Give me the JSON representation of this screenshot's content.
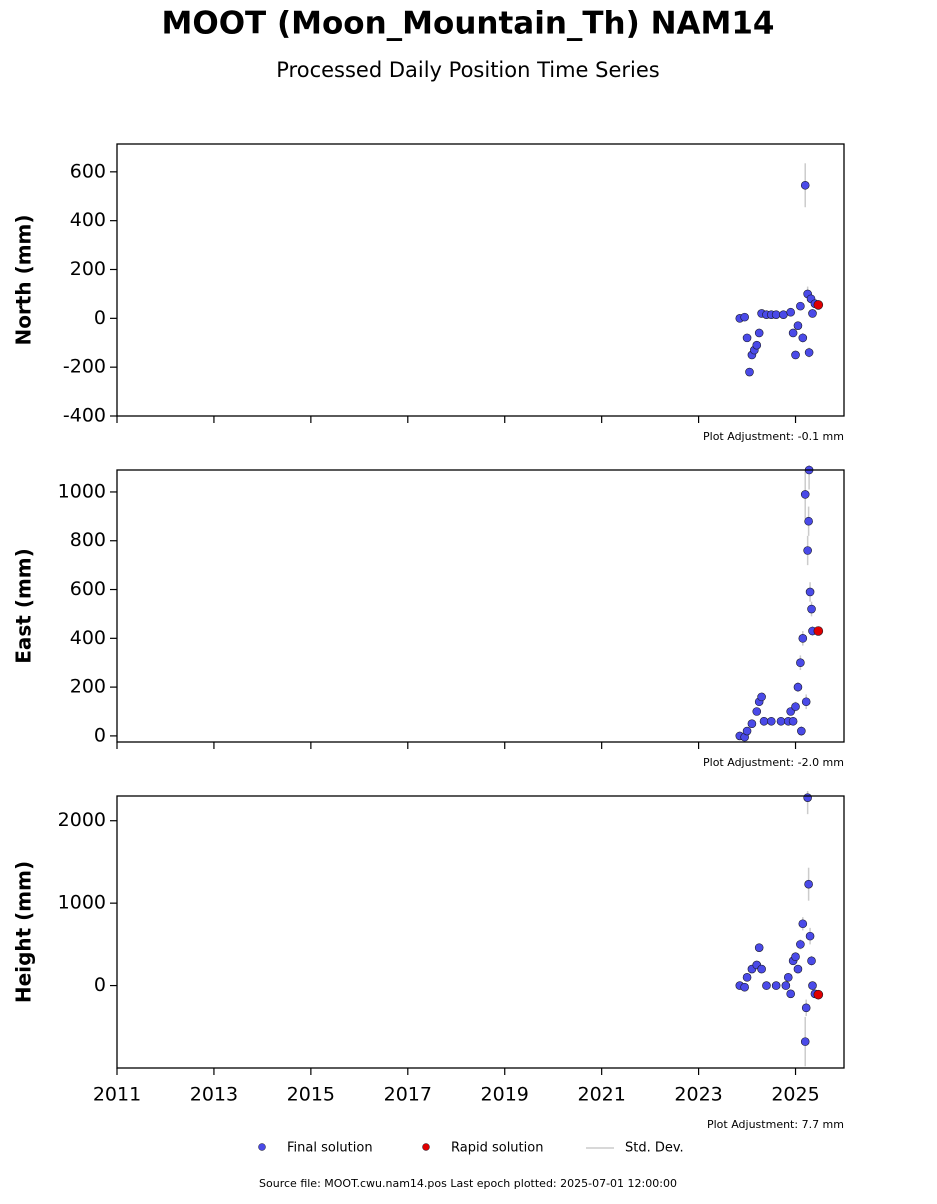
{
  "title": "MOOT (Moon_Mountain_Th) NAM14",
  "subtitle": "Processed Daily Position Time Series",
  "std_dev_label": "Std. Dev.",
  "source": "Source file: MOOT.cwu.nam14.pos  Last epoch plotted: 2025-07-01 12:00:00",
  "chart_data": [
    {
      "type": "scatter",
      "ylabel": "North (mm)",
      "annotation": "Plot Adjustment: -0.1 mm",
      "xlim": [
        2011,
        2026
      ],
      "xticks": [
        2011,
        2013,
        2015,
        2017,
        2019,
        2021,
        2023,
        2025
      ],
      "ylim": [
        -400,
        714
      ],
      "yticks": [
        -400,
        -200,
        0,
        200,
        400,
        600
      ],
      "series": [
        {
          "name": "Final solution",
          "color": "#4a4ae8",
          "x": [
            2023.85,
            2023.95,
            2024.0,
            2024.05,
            2024.1,
            2024.15,
            2024.2,
            2024.25,
            2024.3,
            2024.4,
            2024.5,
            2024.6,
            2024.75,
            2024.9,
            2024.95,
            2025.0,
            2025.05,
            2025.1,
            2025.15,
            2025.2,
            2025.25,
            2025.28,
            2025.32,
            2025.35,
            2025.4
          ],
          "values": [
            0,
            5,
            -80,
            -220,
            -150,
            -130,
            -110,
            -60,
            20,
            15,
            15,
            15,
            15,
            25,
            -60,
            -150,
            -30,
            50,
            -80,
            545,
            100,
            -140,
            80,
            20,
            60
          ],
          "errors": [
            5,
            5,
            10,
            10,
            10,
            10,
            10,
            10,
            5,
            5,
            5,
            5,
            5,
            5,
            10,
            10,
            10,
            10,
            20,
            90,
            30,
            20,
            20,
            10,
            10
          ]
        },
        {
          "name": "Rapid solution",
          "color": "#e00000",
          "x": [
            2025.47
          ],
          "values": [
            55
          ]
        }
      ]
    },
    {
      "type": "scatter",
      "ylabel": "East (mm)",
      "annotation": "Plot Adjustment: -2.0 mm",
      "xlim": [
        2011,
        2026
      ],
      "xticks": [
        2011,
        2013,
        2015,
        2017,
        2019,
        2021,
        2023,
        2025
      ],
      "ylim": [
        -25,
        1090
      ],
      "yticks": [
        0,
        200,
        400,
        600,
        800,
        1000
      ],
      "series": [
        {
          "name": "Final solution",
          "color": "#4a4ae8",
          "x": [
            2023.85,
            2023.95,
            2024.0,
            2024.1,
            2024.2,
            2024.25,
            2024.3,
            2024.35,
            2024.5,
            2024.7,
            2024.85,
            2024.9,
            2024.95,
            2025.0,
            2025.05,
            2025.1,
            2025.12,
            2025.15,
            2025.2,
            2025.22,
            2025.25,
            2025.27,
            2025.28,
            2025.3,
            2025.33,
            2025.35
          ],
          "values": [
            0,
            -5,
            20,
            50,
            100,
            140,
            160,
            60,
            60,
            60,
            60,
            100,
            60,
            120,
            200,
            300,
            20,
            400,
            990,
            140,
            760,
            880,
            1090,
            590,
            520,
            430
          ],
          "errors": [
            5,
            5,
            10,
            10,
            10,
            10,
            10,
            5,
            5,
            5,
            5,
            10,
            10,
            20,
            20,
            30,
            20,
            30,
            100,
            30,
            60,
            60,
            80,
            40,
            30,
            20
          ]
        },
        {
          "name": "Rapid solution",
          "color": "#e00000",
          "x": [
            2025.47
          ],
          "values": [
            430
          ]
        }
      ]
    },
    {
      "type": "scatter",
      "ylabel": "Height (mm)",
      "annotation": "Plot Adjustment: 7.7 mm",
      "xlim": [
        2011,
        2026
      ],
      "xticks": [
        2011,
        2013,
        2015,
        2017,
        2019,
        2021,
        2023,
        2025
      ],
      "ylim": [
        -1000,
        2300
      ],
      "yticks": [
        0,
        1000,
        2000
      ],
      "series": [
        {
          "name": "Final solution",
          "color": "#4a4ae8",
          "x": [
            2023.85,
            2023.95,
            2024.0,
            2024.1,
            2024.2,
            2024.25,
            2024.3,
            2024.4,
            2024.6,
            2024.8,
            2024.85,
            2024.9,
            2024.95,
            2025.0,
            2025.05,
            2025.1,
            2025.15,
            2025.2,
            2025.22,
            2025.25,
            2025.27,
            2025.3,
            2025.33,
            2025.35,
            2025.4
          ],
          "values": [
            0,
            -20,
            100,
            200,
            250,
            460,
            200,
            0,
            0,
            0,
            100,
            -100,
            300,
            350,
            200,
            500,
            750,
            -680,
            -270,
            2280,
            1230,
            600,
            300,
            0,
            -100
          ],
          "errors": [
            20,
            20,
            30,
            30,
            30,
            40,
            30,
            20,
            20,
            20,
            30,
            30,
            40,
            50,
            50,
            60,
            80,
            300,
            100,
            200,
            200,
            100,
            60,
            40,
            30
          ]
        },
        {
          "name": "Rapid solution",
          "color": "#e00000",
          "x": [
            2025.47
          ],
          "values": [
            -110
          ]
        }
      ]
    }
  ]
}
